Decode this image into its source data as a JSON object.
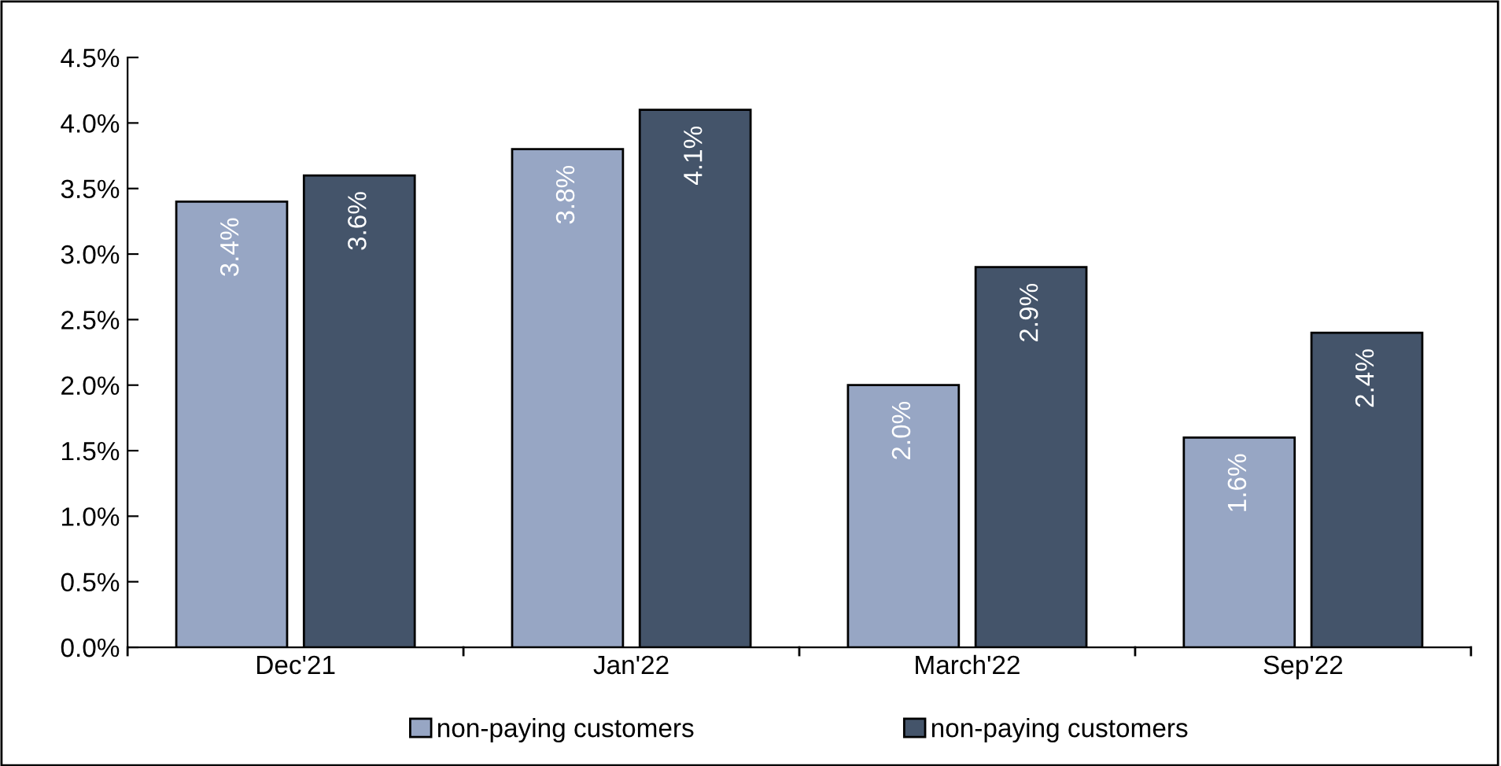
{
  "chart_data": {
    "type": "bar",
    "categories": [
      "Dec'21",
      "Jan'22",
      "March'22",
      "Sep'22"
    ],
    "series": [
      {
        "name": "non-paying customers",
        "color": "#97a6c4",
        "values": [
          3.4,
          3.8,
          2.0,
          1.6
        ],
        "value_labels": [
          "3.4%",
          "3.8%",
          "2.0%",
          "1.6%"
        ]
      },
      {
        "name": "non-paying customers",
        "color": "#44546a",
        "values": [
          3.6,
          4.1,
          2.9,
          2.4
        ],
        "value_labels": [
          "3.6%",
          "4.1%",
          "2.9%",
          "2.4%"
        ]
      }
    ],
    "ylim": [
      0,
      4.5
    ],
    "yticks": [
      {
        "value": 0,
        "label": "0.0%"
      },
      {
        "value": 0.5,
        "label": "0.5%"
      },
      {
        "value": 1,
        "label": "1.0%"
      },
      {
        "value": 1.5,
        "label": "1.5%"
      },
      {
        "value": 2,
        "label": "2.0%"
      },
      {
        "value": 2.5,
        "label": "2.5%"
      },
      {
        "value": 3,
        "label": "3.0%"
      },
      {
        "value": 3.5,
        "label": "3.5%"
      },
      {
        "value": 4,
        "label": "4.0%"
      },
      {
        "value": 4.5,
        "label": "4.5%"
      }
    ],
    "grid": false,
    "legend": "bottom"
  }
}
